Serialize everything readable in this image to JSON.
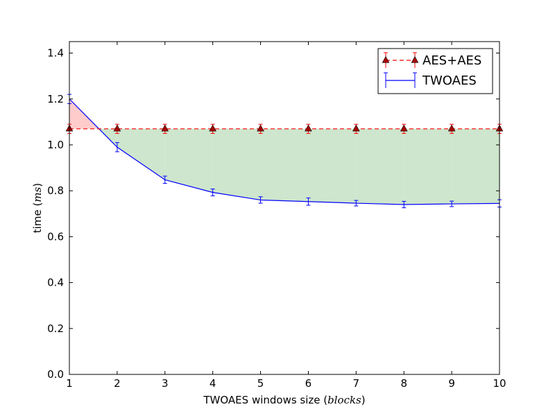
{
  "chart_data": {
    "type": "line",
    "xlabel_main": "TWOAES windows size (",
    "xlabel_math": "blocks",
    "xlabel_end": ")",
    "ylabel_main": "time (",
    "ylabel_math": "ms",
    "ylabel_end": ")",
    "xlim": [
      1,
      10
    ],
    "ylim": [
      0.0,
      1.45
    ],
    "x_ticks": [
      1,
      2,
      3,
      4,
      5,
      6,
      7,
      8,
      9,
      10
    ],
    "x_tick_labels": [
      "1",
      "2",
      "3",
      "4",
      "5",
      "6",
      "7",
      "8",
      "9",
      "10"
    ],
    "y_ticks": [
      0.0,
      0.2,
      0.4,
      0.6,
      0.8,
      1.0,
      1.2,
      1.4
    ],
    "y_tick_labels": [
      "0.0",
      "0.2",
      "0.4",
      "0.6",
      "0.8",
      "1.0",
      "1.2",
      "1.4"
    ],
    "legend_position": "top-right",
    "grid": false,
    "x": [
      1,
      2,
      3,
      4,
      5,
      6,
      7,
      8,
      9,
      10
    ],
    "series": [
      {
        "name": "AES+AES",
        "values": [
          1.07,
          1.07,
          1.07,
          1.07,
          1.07,
          1.07,
          1.07,
          1.07,
          1.07,
          1.07
        ],
        "errors": [
          0.02,
          0.02,
          0.02,
          0.02,
          0.02,
          0.02,
          0.02,
          0.02,
          0.02,
          0.02
        ],
        "color": "#ff0000",
        "marker_color": "#aa0000",
        "style": "dashed",
        "marker": "triangle"
      },
      {
        "name": "TWOAES",
        "values": [
          1.2,
          0.99,
          0.848,
          0.793,
          0.76,
          0.753,
          0.746,
          0.74,
          0.743,
          0.745
        ],
        "errors": [
          0.02,
          0.02,
          0.016,
          0.015,
          0.014,
          0.016,
          0.012,
          0.014,
          0.012,
          0.016
        ],
        "color": "#0000ff",
        "style": "solid",
        "marker": "none"
      }
    ],
    "fill_colors": {
      "above": "#ffcccc",
      "below": "#cde6cd"
    }
  }
}
